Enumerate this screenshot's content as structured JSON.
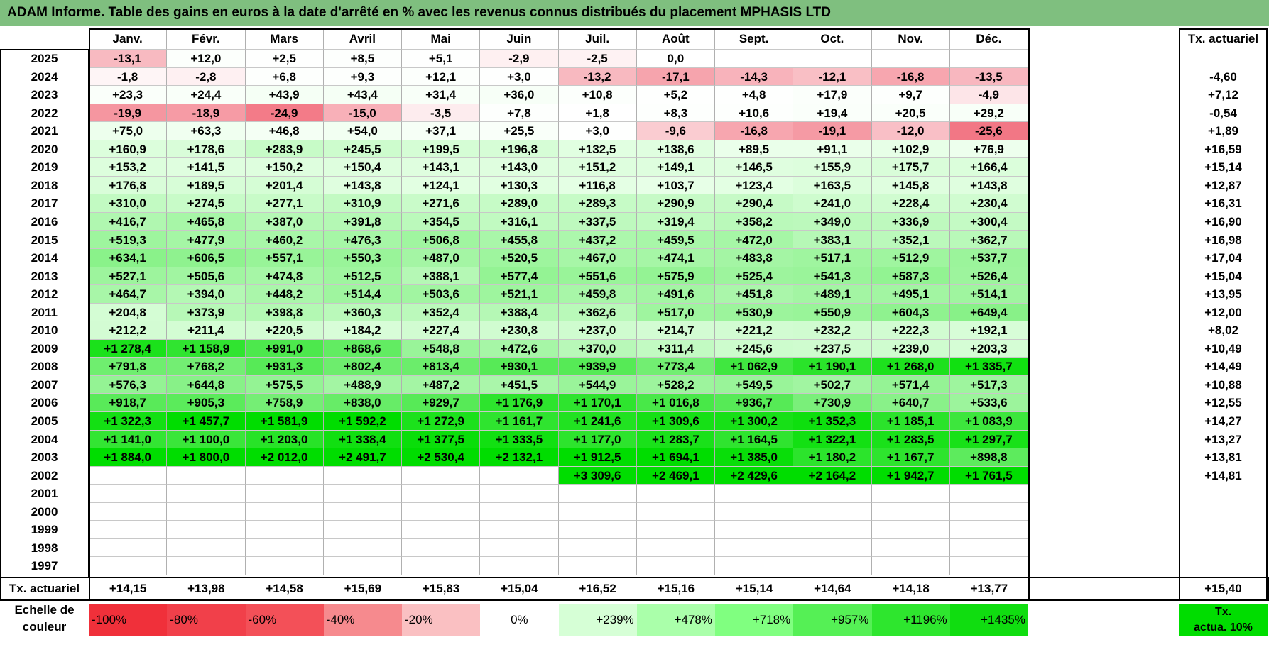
{
  "title": "ADAM Informe. Table des gains en euros à la date d'arrêté en % avec les revenus connus distribués du placement MPHASIS LTD",
  "months": [
    "Janv.",
    "Févr.",
    "Mars",
    "Avril",
    "Mai",
    "Juin",
    "Juil.",
    "Août",
    "Sept.",
    "Oct.",
    "Nov.",
    "Déc."
  ],
  "tx_header": "Tx. actuariel",
  "rows": [
    {
      "year": "2025",
      "values": [
        "-13,1",
        "+12,0",
        "+2,5",
        "+8,5",
        "+5,1",
        "-2,9",
        "-2,5",
        "0,0",
        "",
        "",
        "",
        ""
      ],
      "tx": ""
    },
    {
      "year": "2024",
      "values": [
        "-1,8",
        "-2,8",
        "+6,8",
        "+9,3",
        "+12,1",
        "+3,0",
        "-13,2",
        "-17,1",
        "-14,3",
        "-12,1",
        "-16,8",
        "-13,5"
      ],
      "tx": "-4,60"
    },
    {
      "year": "2023",
      "values": [
        "+23,3",
        "+24,4",
        "+43,9",
        "+43,4",
        "+31,4",
        "+36,0",
        "+10,8",
        "+5,2",
        "+4,8",
        "+17,9",
        "+9,7",
        "-4,9"
      ],
      "tx": "+7,12"
    },
    {
      "year": "2022",
      "values": [
        "-19,9",
        "-18,9",
        "-24,9",
        "-15,0",
        "-3,5",
        "+7,8",
        "+1,8",
        "+8,3",
        "+10,6",
        "+19,4",
        "+20,5",
        "+29,2"
      ],
      "tx": "-0,54"
    },
    {
      "year": "2021",
      "values": [
        "+75,0",
        "+63,3",
        "+46,8",
        "+54,0",
        "+37,1",
        "+25,5",
        "+3,0",
        "-9,6",
        "-16,8",
        "-19,1",
        "-12,0",
        "-25,6"
      ],
      "tx": "+1,89"
    },
    {
      "year": "2020",
      "values": [
        "+160,9",
        "+178,6",
        "+283,9",
        "+245,5",
        "+199,5",
        "+196,8",
        "+132,5",
        "+138,6",
        "+89,5",
        "+91,1",
        "+102,9",
        "+76,9"
      ],
      "tx": "+16,59"
    },
    {
      "year": "2019",
      "values": [
        "+153,2",
        "+141,5",
        "+150,2",
        "+150,4",
        "+143,1",
        "+143,0",
        "+151,2",
        "+149,1",
        "+146,5",
        "+155,9",
        "+175,7",
        "+166,4"
      ],
      "tx": "+15,14"
    },
    {
      "year": "2018",
      "values": [
        "+176,8",
        "+189,5",
        "+201,4",
        "+143,8",
        "+124,1",
        "+130,3",
        "+116,8",
        "+103,7",
        "+123,4",
        "+163,5",
        "+145,8",
        "+143,8"
      ],
      "tx": "+12,87"
    },
    {
      "year": "2017",
      "values": [
        "+310,0",
        "+274,5",
        "+277,1",
        "+310,9",
        "+271,6",
        "+289,0",
        "+289,3",
        "+290,9",
        "+290,4",
        "+241,0",
        "+228,4",
        "+230,4"
      ],
      "tx": "+16,31"
    },
    {
      "year": "2016",
      "values": [
        "+416,7",
        "+465,8",
        "+387,0",
        "+391,8",
        "+354,5",
        "+316,1",
        "+337,5",
        "+319,4",
        "+358,2",
        "+349,0",
        "+336,9",
        "+300,4"
      ],
      "tx": "+16,90"
    },
    {
      "year": "2015",
      "values": [
        "+519,3",
        "+477,9",
        "+460,2",
        "+476,3",
        "+506,8",
        "+455,8",
        "+437,2",
        "+459,5",
        "+472,0",
        "+383,1",
        "+352,1",
        "+362,7"
      ],
      "tx": "+16,98"
    },
    {
      "year": "2014",
      "values": [
        "+634,1",
        "+606,5",
        "+557,1",
        "+550,3",
        "+487,0",
        "+520,5",
        "+467,0",
        "+474,1",
        "+483,8",
        "+517,1",
        "+512,9",
        "+537,7"
      ],
      "tx": "+17,04"
    },
    {
      "year": "2013",
      "values": [
        "+527,1",
        "+505,6",
        "+474,8",
        "+512,5",
        "+388,1",
        "+577,4",
        "+551,6",
        "+575,9",
        "+525,4",
        "+541,3",
        "+587,3",
        "+526,4"
      ],
      "tx": "+15,04"
    },
    {
      "year": "2012",
      "values": [
        "+464,7",
        "+394,0",
        "+448,2",
        "+514,4",
        "+503,6",
        "+521,1",
        "+459,8",
        "+491,6",
        "+451,8",
        "+489,1",
        "+495,1",
        "+514,1"
      ],
      "tx": "+13,95"
    },
    {
      "year": "2011",
      "values": [
        "+204,8",
        "+373,9",
        "+398,8",
        "+360,3",
        "+352,4",
        "+388,4",
        "+362,6",
        "+517,0",
        "+530,9",
        "+550,9",
        "+604,3",
        "+649,4"
      ],
      "tx": "+12,00"
    },
    {
      "year": "2010",
      "values": [
        "+212,2",
        "+211,4",
        "+220,5",
        "+184,2",
        "+227,4",
        "+230,8",
        "+237,0",
        "+214,7",
        "+221,2",
        "+232,2",
        "+222,3",
        "+192,1"
      ],
      "tx": "+8,02"
    },
    {
      "year": "2009",
      "values": [
        "+1 278,4",
        "+1 158,9",
        "+991,0",
        "+868,6",
        "+548,8",
        "+472,6",
        "+370,0",
        "+311,4",
        "+245,6",
        "+237,5",
        "+239,0",
        "+203,3"
      ],
      "tx": "+10,49"
    },
    {
      "year": "2008",
      "values": [
        "+791,8",
        "+768,2",
        "+931,3",
        "+802,4",
        "+813,4",
        "+930,1",
        "+939,9",
        "+773,4",
        "+1 062,9",
        "+1 190,1",
        "+1 268,0",
        "+1 335,7"
      ],
      "tx": "+14,49"
    },
    {
      "year": "2007",
      "values": [
        "+576,3",
        "+644,8",
        "+575,5",
        "+488,9",
        "+487,2",
        "+451,5",
        "+544,9",
        "+528,2",
        "+549,5",
        "+502,7",
        "+571,4",
        "+517,3"
      ],
      "tx": "+10,88"
    },
    {
      "year": "2006",
      "values": [
        "+918,7",
        "+905,3",
        "+758,9",
        "+838,0",
        "+929,7",
        "+1 176,9",
        "+1 170,1",
        "+1 016,8",
        "+936,7",
        "+730,9",
        "+640,7",
        "+533,6"
      ],
      "tx": "+12,55"
    },
    {
      "year": "2005",
      "values": [
        "+1 322,3",
        "+1 457,7",
        "+1 581,9",
        "+1 592,2",
        "+1 272,9",
        "+1 161,7",
        "+1 241,6",
        "+1 309,6",
        "+1 300,2",
        "+1 352,3",
        "+1 185,1",
        "+1 083,9"
      ],
      "tx": "+14,27"
    },
    {
      "year": "2004",
      "values": [
        "+1 141,0",
        "+1 100,0",
        "+1 203,0",
        "+1 338,4",
        "+1 377,5",
        "+1 333,5",
        "+1 177,0",
        "+1 283,7",
        "+1 164,5",
        "+1 322,1",
        "+1 283,5",
        "+1 297,7"
      ],
      "tx": "+13,27"
    },
    {
      "year": "2003",
      "values": [
        "+1 884,0",
        "+1 800,0",
        "+2 012,0",
        "+2 491,7",
        "+2 530,4",
        "+2 132,1",
        "+1 912,5",
        "+1 694,1",
        "+1 385,0",
        "+1 180,2",
        "+1 167,7",
        "+898,8"
      ],
      "tx": "+13,81"
    },
    {
      "year": "2002",
      "values": [
        "",
        "",
        "",
        "",
        "",
        "",
        "+3 309,6",
        "+2 469,1",
        "+2 429,6",
        "+2 164,2",
        "+1 942,7",
        "+1 761,5"
      ],
      "tx": "+14,81"
    },
    {
      "year": "2001",
      "values": [
        "",
        "",
        "",
        "",
        "",
        "",
        "",
        "",
        "",
        "",
        "",
        ""
      ],
      "tx": ""
    },
    {
      "year": "2000",
      "values": [
        "",
        "",
        "",
        "",
        "",
        "",
        "",
        "",
        "",
        "",
        "",
        ""
      ],
      "tx": ""
    },
    {
      "year": "1999",
      "values": [
        "",
        "",
        "",
        "",
        "",
        "",
        "",
        "",
        "",
        "",
        "",
        ""
      ],
      "tx": ""
    },
    {
      "year": "1998",
      "values": [
        "",
        "",
        "",
        "",
        "",
        "",
        "",
        "",
        "",
        "",
        "",
        ""
      ],
      "tx": ""
    },
    {
      "year": "1997",
      "values": [
        "",
        "",
        "",
        "",
        "",
        "",
        "",
        "",
        "",
        "",
        "",
        ""
      ],
      "tx": ""
    }
  ],
  "footer": {
    "label": "Tx. actuariel",
    "values": [
      "+14,15",
      "+13,98",
      "+14,58",
      "+15,69",
      "+15,83",
      "+15,04",
      "+16,52",
      "+15,16",
      "+15,14",
      "+14,64",
      "+14,18",
      "+13,77"
    ],
    "total": "+15,40"
  },
  "legend": {
    "label_line1": "Echelle de",
    "label_line2": "couleur",
    "items": [
      {
        "text": "-100%",
        "color": "#f0303a",
        "align": "left"
      },
      {
        "text": "-80%",
        "color": "#f1404a",
        "align": "left"
      },
      {
        "text": "-60%",
        "color": "#f35058",
        "align": "left"
      },
      {
        "text": "-40%",
        "color": "#f68a8e",
        "align": "left"
      },
      {
        "text": "-20%",
        "color": "#fac0c2",
        "align": "left"
      },
      {
        "text": "0%",
        "color": "#ffffff",
        "align": "center"
      },
      {
        "text": "+239%",
        "color": "#d6ffd6",
        "align": "right"
      },
      {
        "text": "+478%",
        "color": "#aaffaa",
        "align": "right"
      },
      {
        "text": "+718%",
        "color": "#80ff80",
        "align": "right"
      },
      {
        "text": "+957%",
        "color": "#55f055",
        "align": "right"
      },
      {
        "text": "+1196%",
        "color": "#2ee62e",
        "align": "right"
      },
      {
        "text": "+1435%",
        "color": "#10dd10",
        "align": "right"
      }
    ],
    "tx_line1": "Tx.",
    "tx_line2": "actua. 10%",
    "tx_color": "#00dd00"
  },
  "colors": {
    "title_bg": "#7fbf7f",
    "negative_max": "#f0303a",
    "positive_max": "#00dd00"
  }
}
